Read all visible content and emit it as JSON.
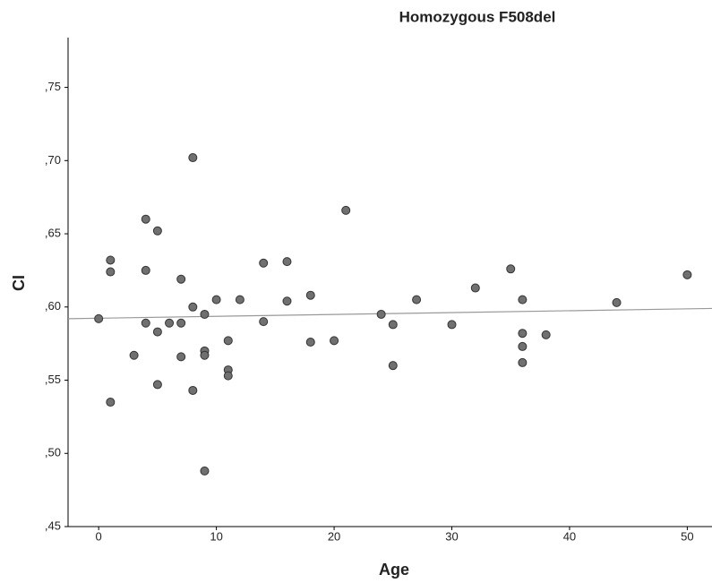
{
  "chart_data": {
    "type": "scatter",
    "title": "Homozygous F508del",
    "x_label": "Age",
    "y_label": "CI",
    "x": [
      0,
      1,
      1,
      1,
      3,
      4,
      4,
      4,
      5,
      5,
      5,
      6,
      7,
      7,
      7,
      8,
      8,
      8,
      9,
      9,
      9,
      9,
      10,
      11,
      11,
      11,
      12,
      14,
      14,
      16,
      16,
      18,
      18,
      20,
      21,
      24,
      25,
      25,
      27,
      30,
      32,
      35,
      36,
      36,
      36,
      36,
      38,
      44,
      50
    ],
    "y": [
      0.592,
      0.632,
      0.624,
      0.535,
      0.567,
      0.66,
      0.625,
      0.589,
      0.652,
      0.583,
      0.547,
      0.589,
      0.619,
      0.589,
      0.566,
      0.702,
      0.6,
      0.543,
      0.595,
      0.57,
      0.567,
      0.488,
      0.605,
      0.577,
      0.557,
      0.553,
      0.605,
      0.63,
      0.59,
      0.631,
      0.604,
      0.608,
      0.576,
      0.577,
      0.666,
      0.595,
      0.588,
      0.56,
      0.605,
      0.588,
      0.613,
      0.626,
      0.605,
      0.582,
      0.573,
      0.562,
      0.581,
      0.603,
      0.622
    ],
    "color": "#707070",
    "fit_line": {
      "x": [
        -2.6,
        52.1
      ],
      "y": [
        0.592,
        0.599
      ],
      "color": "#999999"
    },
    "xlim": [
      -2.6,
      52.1
    ],
    "ylim": [
      0.45,
      0.784
    ],
    "xticks": [
      0,
      10,
      20,
      30,
      40,
      50
    ],
    "yticks": [
      {
        "value": 0.45,
        "label": ",45"
      },
      {
        "value": 0.5,
        "label": ",50"
      },
      {
        "value": 0.55,
        "label": ",55"
      },
      {
        "value": 0.6,
        "label": ",60"
      },
      {
        "value": 0.65,
        "label": ",65"
      },
      {
        "value": 0.7,
        "label": ",70"
      },
      {
        "value": 0.75,
        "label": ",75"
      }
    ]
  }
}
